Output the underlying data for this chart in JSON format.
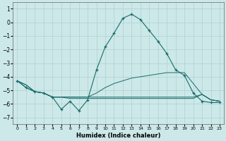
{
  "xlabel": "Humidex (Indice chaleur)",
  "background_color": "#cce8e8",
  "grid_color": "#b0d0d0",
  "line_color": "#1a6b6b",
  "x": [
    0,
    1,
    2,
    3,
    4,
    5,
    6,
    7,
    8,
    9,
    10,
    11,
    12,
    13,
    14,
    15,
    16,
    17,
    18,
    19,
    20,
    21,
    22,
    23
  ],
  "line1": [
    -4.3,
    -4.8,
    -5.1,
    -5.2,
    -5.5,
    -6.4,
    -5.8,
    -6.5,
    -5.7,
    -3.5,
    -1.8,
    -0.8,
    0.3,
    0.6,
    0.2,
    -0.6,
    -1.4,
    -2.3,
    -3.5,
    -3.9,
    -5.2,
    -5.8,
    -5.9,
    -5.9
  ],
  "line2": [
    -4.3,
    -4.6,
    -5.1,
    -5.2,
    -5.5,
    -5.5,
    -5.5,
    -5.5,
    -5.5,
    -5.2,
    -4.8,
    -4.5,
    -4.3,
    -4.1,
    -4.0,
    -3.9,
    -3.8,
    -3.7,
    -3.7,
    -3.7,
    -4.5,
    -5.3,
    -5.7,
    -5.8
  ],
  "line3": [
    -4.3,
    -4.6,
    -5.1,
    -5.2,
    -5.5,
    -5.5,
    -5.5,
    -5.5,
    -5.5,
    -5.5,
    -5.5,
    -5.5,
    -5.5,
    -5.5,
    -5.5,
    -5.5,
    -5.5,
    -5.5,
    -5.5,
    -5.5,
    -5.5,
    -5.3,
    -5.7,
    -5.8
  ],
  "line4": [
    -4.3,
    -4.8,
    -5.1,
    -5.2,
    -5.5,
    -5.5,
    -5.6,
    -5.6,
    -5.6,
    -5.6,
    -5.6,
    -5.6,
    -5.6,
    -5.6,
    -5.6,
    -5.6,
    -5.6,
    -5.6,
    -5.6,
    -5.6,
    -5.6,
    -5.3,
    -5.7,
    -5.8
  ],
  "ylim": [
    -7.5,
    1.5
  ],
  "xlim": [
    -0.5,
    23.5
  ],
  "yticks": [
    1,
    0,
    -1,
    -2,
    -3,
    -4,
    -5,
    -6,
    -7
  ],
  "xticks": [
    0,
    1,
    2,
    3,
    4,
    5,
    6,
    7,
    8,
    9,
    10,
    11,
    12,
    13,
    14,
    15,
    16,
    17,
    18,
    19,
    20,
    21,
    22,
    23
  ]
}
